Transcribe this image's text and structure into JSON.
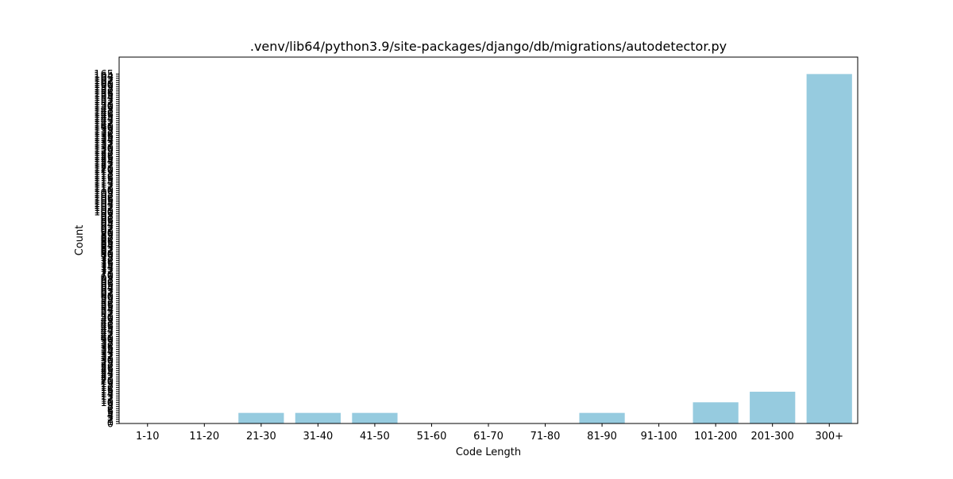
{
  "chart_data": {
    "type": "bar",
    "title": ".venv/lib64/python3.9/site-packages/django/db/migrations/autodetector.py",
    "xlabel": "Code Length",
    "ylabel": "Count",
    "categories": [
      "1-10",
      "11-20",
      "21-30",
      "31-40",
      "41-50",
      "51-60",
      "61-70",
      "71-80",
      "81-90",
      "91-100",
      "101-200",
      "201-300",
      "300+"
    ],
    "values": [
      0,
      0,
      5,
      5,
      5,
      0,
      0,
      0,
      5,
      0,
      10,
      15,
      165
    ],
    "ylim": [
      0,
      173
    ],
    "y_ticks_step": 1,
    "y_ticks_max": 165,
    "grid": false,
    "bar_color": "#96cbdf"
  }
}
